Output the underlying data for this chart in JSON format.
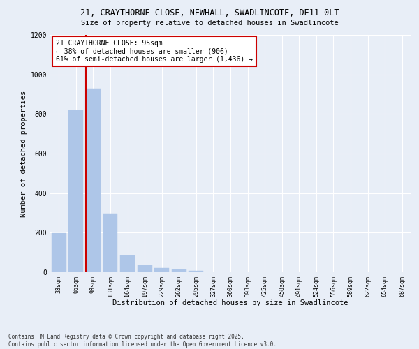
{
  "title_line1": "21, CRAYTHORNE CLOSE, NEWHALL, SWADLINCOTE, DE11 0LT",
  "title_line2": "Size of property relative to detached houses in Swadlincote",
  "xlabel": "Distribution of detached houses by size in Swadlincote",
  "ylabel": "Number of detached properties",
  "annotation_line1": "21 CRAYTHORNE CLOSE: 95sqm",
  "annotation_line2": "← 38% of detached houses are smaller (906)",
  "annotation_line3": "61% of semi-detached houses are larger (1,436) →",
  "bar_labels": [
    "33sqm",
    "66sqm",
    "98sqm",
    "131sqm",
    "164sqm",
    "197sqm",
    "229sqm",
    "262sqm",
    "295sqm",
    "327sqm",
    "360sqm",
    "393sqm",
    "425sqm",
    "458sqm",
    "491sqm",
    "524sqm",
    "556sqm",
    "589sqm",
    "622sqm",
    "654sqm",
    "687sqm"
  ],
  "bar_values": [
    197,
    820,
    930,
    295,
    85,
    37,
    20,
    13,
    8,
    0,
    0,
    0,
    0,
    0,
    0,
    0,
    0,
    0,
    0,
    0,
    0
  ],
  "bar_color": "#aec6e8",
  "bar_edge_color": "#aec6e8",
  "vline_color": "#cc0000",
  "annotation_box_color": "#cc0000",
  "background_color": "#e8eef7",
  "ylim": [
    0,
    1200
  ],
  "yticks": [
    0,
    200,
    400,
    600,
    800,
    1000,
    1200
  ],
  "footer_line1": "Contains HM Land Registry data © Crown copyright and database right 2025.",
  "footer_line2": "Contains public sector information licensed under the Open Government Licence v3.0."
}
